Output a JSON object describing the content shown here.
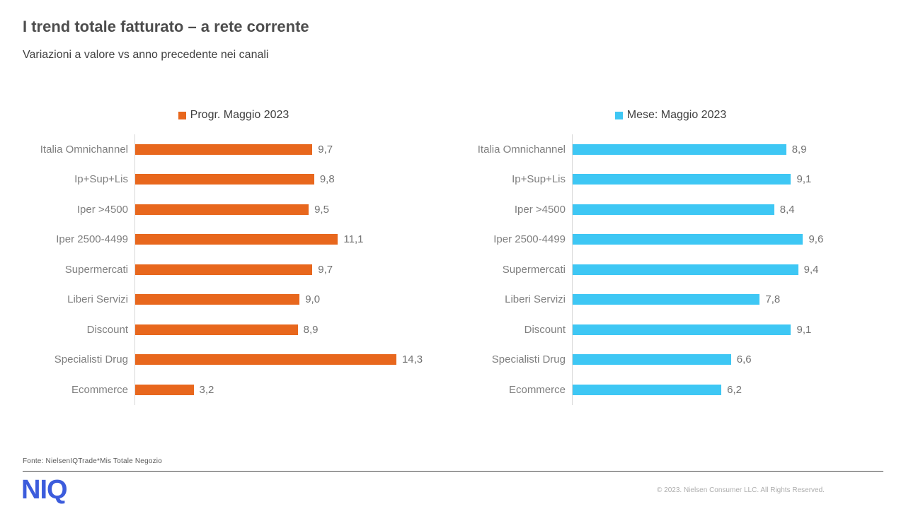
{
  "header": {
    "title": "I trend totale fatturato – a rete corrente",
    "subtitle": "Variazioni a valore vs anno precedente nei canali"
  },
  "chart_data": {
    "type": "bar",
    "orientation": "horizontal",
    "categories": [
      "Italia Omnichannel",
      "Ip+Sup+Lis",
      "Iper >4500",
      "Iper 2500-4499",
      "Supermercati",
      "Liberi Servizi",
      "Discount",
      "Specialisti Drug",
      "Ecommerce"
    ],
    "series": [
      {
        "name": "Progr. Maggio 2023",
        "color": "#e8671d",
        "values": [
          9.7,
          9.8,
          9.5,
          11.1,
          9.7,
          9.0,
          8.9,
          14.3,
          3.2
        ],
        "labels": [
          "9,7",
          "9,8",
          "9,5",
          "11,1",
          "9,7",
          "9,0",
          "8,9",
          "14,3",
          "3,2"
        ],
        "xlim": [
          0,
          16.7
        ]
      },
      {
        "name": "Mese: Maggio 2023",
        "color": "#3ec7f4",
        "values": [
          8.9,
          9.1,
          8.4,
          9.6,
          9.4,
          7.8,
          9.1,
          6.6,
          6.2
        ],
        "labels": [
          "8,9",
          "9,1",
          "8,4",
          "9,6",
          "9,4",
          "7,8",
          "9,1",
          "6,6",
          "6,2"
        ],
        "xlim": [
          0,
          10.1
        ]
      }
    ],
    "grid": false,
    "legend_position": "top-center",
    "value_labels": "outside-end"
  },
  "footer": {
    "fonte": "Fonte: NielsenIQTrade*Mis Totale Negozio",
    "logo": "NIQ",
    "copyright": "© 2023. Nielsen Consumer LLC. All Rights Reserved."
  },
  "colors": {
    "orange": "#e8671d",
    "blue": "#3ec7f4",
    "label_gray": "#7f7f7f",
    "title_gray": "#4d4d4d"
  }
}
